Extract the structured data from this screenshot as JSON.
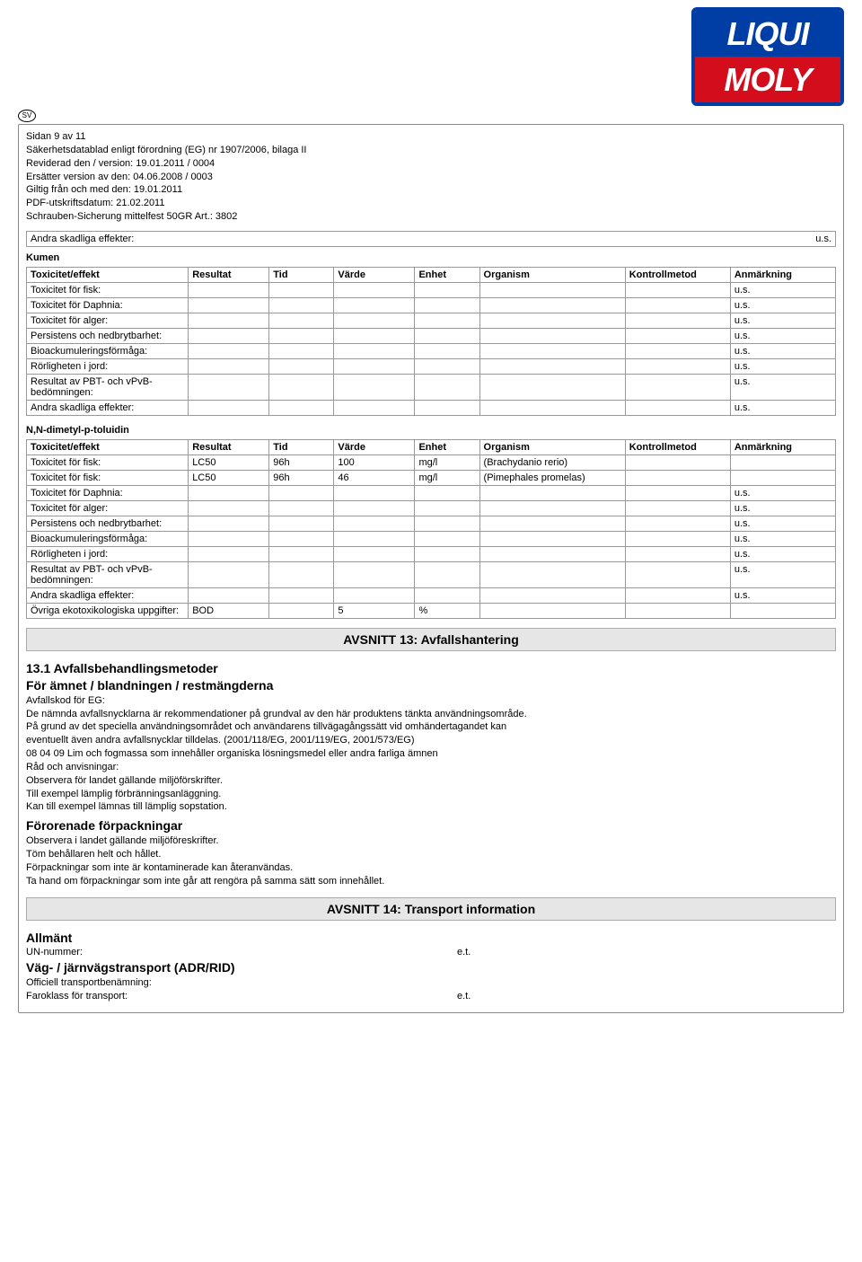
{
  "logo": {
    "top": "LIQUI",
    "bottom": "MOLY"
  },
  "sv_badge": "SV",
  "header": {
    "page": "Sidan  9 av 11",
    "line1": "Säkerhetsdatablad enligt förordning (EG) nr 1907/2006, bilaga II",
    "line2": "Reviderad den / version: 19.01.2011  / 0004",
    "line3": "Ersätter version av den: 04.06.2008  / 0003",
    "line4": "Giltig från och med den: 19.01.2011",
    "line5": "PDF-utskriftsdatum: 21.02.2011",
    "line6": "Schrauben-Sicherung mittelfest 50GR Art.: 3802"
  },
  "andra_top": {
    "label": "Andra skadliga effekter:",
    "val": "u.s."
  },
  "table_headers": [
    "Toxicitet/effekt",
    "Resultat",
    "Tid",
    "Värde",
    "Enhet",
    "Organism",
    "Kontrollmetod",
    "Anmärkning"
  ],
  "col_widths": [
    "20%",
    "10%",
    "8%",
    "10%",
    "8%",
    "18%",
    "13%",
    "13%"
  ],
  "kumen": {
    "title": "Kumen",
    "rows": [
      [
        "Toxicitet för fisk:",
        "",
        "",
        "",
        "",
        "",
        "",
        "u.s."
      ],
      [
        "Toxicitet för Daphnia:",
        "",
        "",
        "",
        "",
        "",
        "",
        "u.s."
      ],
      [
        "Toxicitet för alger:",
        "",
        "",
        "",
        "",
        "",
        "",
        "u.s."
      ],
      [
        "Persistens och nedbrytbarhet:",
        "",
        "",
        "",
        "",
        "",
        "",
        "u.s."
      ],
      [
        "Bioackumuleringsförmåga:",
        "",
        "",
        "",
        "",
        "",
        "",
        "u.s."
      ],
      [
        "Rörligheten i jord:",
        "",
        "",
        "",
        "",
        "",
        "",
        "u.s."
      ],
      [
        "Resultat av PBT- och vPvB-bedömningen:",
        "",
        "",
        "",
        "",
        "",
        "",
        "u.s."
      ],
      [
        "Andra skadliga effekter:",
        "",
        "",
        "",
        "",
        "",
        "",
        "u.s."
      ]
    ]
  },
  "nndimetyl": {
    "title": "N,N-dimetyl-p-toluidin",
    "rows": [
      [
        "Toxicitet för fisk:",
        "LC50",
        "96h",
        "100",
        "mg/l",
        "(Brachydanio rerio)",
        "",
        ""
      ],
      [
        "Toxicitet för fisk:",
        "LC50",
        "96h",
        "46",
        "mg/l",
        "(Pimephales promelas)",
        "",
        ""
      ],
      [
        "Toxicitet för Daphnia:",
        "",
        "",
        "",
        "",
        "",
        "",
        "u.s."
      ],
      [
        "Toxicitet för alger:",
        "",
        "",
        "",
        "",
        "",
        "",
        "u.s."
      ],
      [
        "Persistens och nedbrytbarhet:",
        "",
        "",
        "",
        "",
        "",
        "",
        "u.s."
      ],
      [
        "Bioackumuleringsförmåga:",
        "",
        "",
        "",
        "",
        "",
        "",
        "u.s."
      ],
      [
        "Rörligheten i jord:",
        "",
        "",
        "",
        "",
        "",
        "",
        "u.s."
      ],
      [
        "Resultat av PBT- och vPvB-bedömningen:",
        "",
        "",
        "",
        "",
        "",
        "",
        "u.s."
      ],
      [
        "Andra skadliga effekter:",
        "",
        "",
        "",
        "",
        "",
        "",
        "u.s."
      ],
      [
        "Övriga ekotoxikologiska uppgifter:",
        "BOD",
        "",
        "5",
        "%",
        "",
        "",
        ""
      ]
    ]
  },
  "section13": {
    "bar": "AVSNITT 13: Avfallshantering",
    "h": "13.1 Avfallsbehandlingsmetoder",
    "sub1": "För ämnet / blandningen / restmängderna",
    "l1": "Avfallskod för EG:",
    "l2": "De nämnda avfallsnycklarna är rekommendationer på grundval av den här produktens tänkta användningsområde.",
    "l3": "På grund av det speciella användningsområdet och användarens tillvägagångssätt vid omhändertagandet kan",
    "l4": "eventuellt även andra avfallsnycklar tilldelas. (2001/118/EG, 2001/119/EG, 2001/573/EG)",
    "l5": "08 04 09 Lim och fogmassa som innehåller organiska lösningsmedel eller andra farliga ämnen",
    "l6": "Råd och anvisningar:",
    "l7": "Observera för landet gällande miljöförskrifter.",
    "l8": "Till exempel lämplig förbränningsanläggning.",
    "l9": "Kan till exempel lämnas till lämplig sopstation.",
    "sub2": "Förorenade förpackningar",
    "p1": "Observera i landet gällande miljöföreskrifter.",
    "p2": "Töm behållaren helt och hållet.",
    "p3": "Förpackningar som inte är kontaminerade kan återanvändas.",
    "p4": "Ta hand om förpackningar som inte går att rengöra på samma sätt som innehållet."
  },
  "section14": {
    "bar": "AVSNITT 14: Transport information",
    "allmant": "Allmänt",
    "un": {
      "k": "UN-nummer:",
      "v": "e.t."
    },
    "vag": "Väg- / järnvägstransport (ADR/RID)",
    "off": "Officiell transportbenämning:",
    "faro": {
      "k": "Faroklass för transport:",
      "v": "e.t."
    }
  }
}
